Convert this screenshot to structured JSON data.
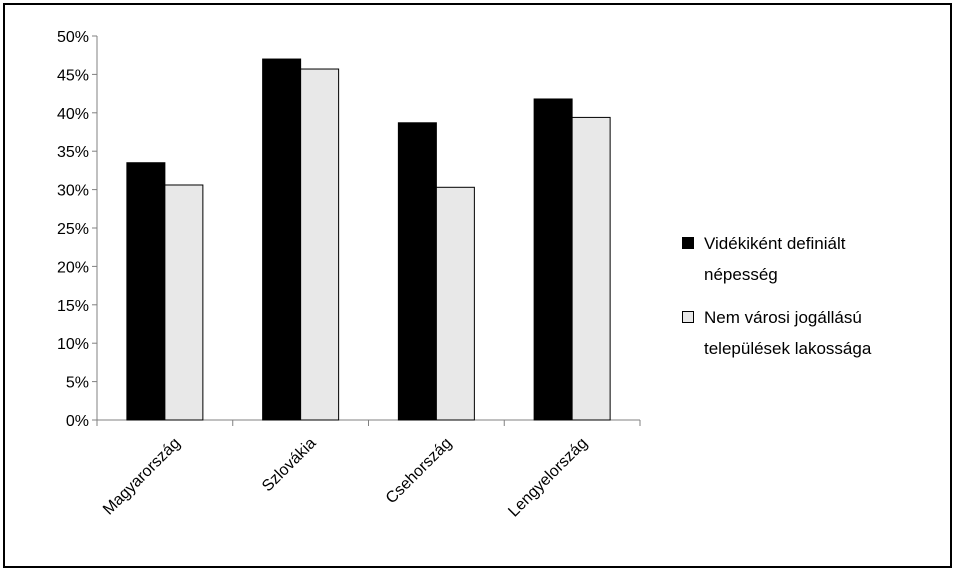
{
  "chart_data": {
    "type": "bar",
    "categories": [
      "Magyarország",
      "Szlovákia",
      "Csehország",
      "Lengyelország"
    ],
    "series": [
      {
        "name": "Vidékiként definiált\nnépesség",
        "color": "#000000",
        "values": [
          33.5,
          47.0,
          38.7,
          41.8
        ]
      },
      {
        "name": "Nem városi jogállású\ntelepülések lakossága",
        "color": "#e8e8e8",
        "values": [
          30.6,
          45.7,
          30.3,
          39.4
        ]
      }
    ],
    "ylim": [
      0,
      50
    ],
    "yticks": [
      "0%",
      "5%",
      "10%",
      "15%",
      "20%",
      "25%",
      "30%",
      "35%",
      "40%",
      "45%",
      "50%"
    ],
    "title": "",
    "xlabel": "",
    "ylabel": "",
    "legend": "right",
    "grid": false
  }
}
